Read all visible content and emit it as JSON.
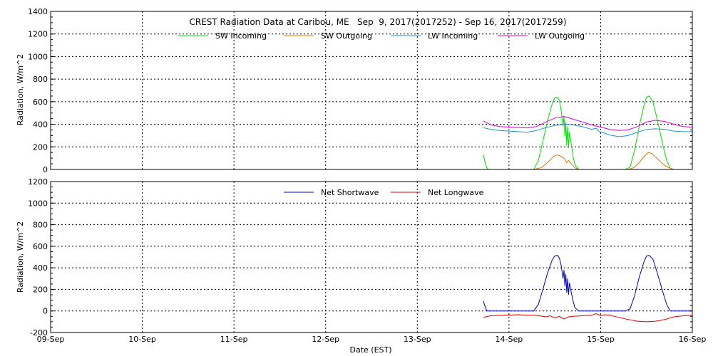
{
  "chart_data": [
    {
      "type": "line",
      "title": "CREST Radiation Data at Caribou, ME   Sep  9, 2017(2017252) - Sep 16, 2017(2017259)",
      "ylabel": "Radiation, W/m^2",
      "xlabel": "",
      "ylim": [
        0,
        1400
      ],
      "yticks": [
        0,
        200,
        400,
        600,
        800,
        1000,
        1200,
        1400
      ],
      "x_range": [
        9,
        16
      ],
      "legend_placement": "top",
      "grid": true,
      "series": [
        {
          "name": "SW Incoming",
          "color": "#00e000",
          "x": [
            13.72,
            13.74,
            13.76,
            13.78,
            14.27,
            14.32,
            14.37,
            14.42,
            14.47,
            14.5,
            14.53,
            14.55,
            14.57,
            14.59,
            14.6,
            14.61,
            14.62,
            14.63,
            14.64,
            14.65,
            14.66,
            14.68,
            14.7,
            14.72,
            14.76,
            14.78,
            15.27,
            15.32,
            15.37,
            15.42,
            15.47,
            15.5,
            15.53,
            15.57,
            15.6,
            15.64,
            15.68,
            15.72,
            15.76,
            15.8
          ],
          "y": [
            130,
            60,
            10,
            0,
            0,
            80,
            250,
            430,
            580,
            635,
            640,
            610,
            520,
            380,
            470,
            290,
            420,
            210,
            380,
            190,
            330,
            220,
            110,
            40,
            0,
            0,
            0,
            20,
            170,
            380,
            560,
            640,
            650,
            600,
            500,
            360,
            210,
            80,
            10,
            0
          ]
        },
        {
          "name": "SW Outgoing",
          "color": "#e07800",
          "x": [
            14.27,
            14.35,
            14.42,
            14.48,
            14.52,
            14.56,
            14.6,
            14.63,
            14.65,
            14.68,
            14.72,
            14.76,
            15.3,
            15.36,
            15.42,
            15.48,
            15.52,
            15.56,
            15.6,
            15.65,
            15.7,
            15.76,
            15.8
          ],
          "y": [
            0,
            15,
            60,
            110,
            130,
            120,
            100,
            60,
            80,
            50,
            15,
            0,
            0,
            15,
            60,
            120,
            150,
            140,
            110,
            70,
            35,
            10,
            0
          ]
        },
        {
          "name": "LW Incoming",
          "color": "#1e90d0",
          "x": [
            13.72,
            13.8,
            13.9,
            14.0,
            14.1,
            14.2,
            14.3,
            14.4,
            14.5,
            14.6,
            14.7,
            14.8,
            14.9,
            14.95,
            14.98,
            15.0,
            15.05,
            15.1,
            15.2,
            15.3,
            15.4,
            15.5,
            15.6,
            15.7,
            15.8,
            15.9,
            16.0
          ],
          "y": [
            370,
            355,
            345,
            340,
            335,
            330,
            345,
            370,
            390,
            400,
            395,
            380,
            355,
            365,
            340,
            330,
            320,
            305,
            290,
            300,
            330,
            355,
            360,
            355,
            340,
            335,
            335
          ]
        },
        {
          "name": "LW Outgoing",
          "color": "#e000e0",
          "x": [
            13.72,
            13.8,
            13.9,
            14.0,
            14.1,
            14.2,
            14.3,
            14.4,
            14.5,
            14.6,
            14.7,
            14.8,
            14.9,
            15.0,
            15.1,
            15.2,
            15.3,
            15.4,
            15.5,
            15.6,
            15.7,
            15.8,
            15.9,
            16.0
          ],
          "y": [
            430,
            395,
            380,
            375,
            370,
            368,
            380,
            420,
            455,
            470,
            445,
            420,
            395,
            375,
            355,
            345,
            350,
            380,
            420,
            435,
            425,
            400,
            380,
            375
          ]
        }
      ]
    },
    {
      "type": "line",
      "title": "",
      "ylabel": "Radiation, W/m^2",
      "xlabel": "Date (EST)",
      "ylim": [
        -200,
        1200
      ],
      "yticks": [
        -200,
        0,
        200,
        400,
        600,
        800,
        1000,
        1200
      ],
      "x_range": [
        9,
        16
      ],
      "xtick_values": [
        9,
        10,
        11,
        12,
        13,
        14,
        15,
        16
      ],
      "xtick_labels": [
        "09-Sep",
        "10-Sep",
        "11-Sep",
        "12-Sep",
        "13-Sep",
        "14-Sep",
        "15-Sep",
        "16-Sep"
      ],
      "legend_placement": "top",
      "grid": true,
      "series": [
        {
          "name": "Net Shortwave",
          "color": "#0000c0",
          "x": [
            13.72,
            13.74,
            13.76,
            14.27,
            14.32,
            14.37,
            14.42,
            14.47,
            14.5,
            14.53,
            14.55,
            14.57,
            14.59,
            14.6,
            14.61,
            14.62,
            14.63,
            14.64,
            14.65,
            14.66,
            14.68,
            14.7,
            14.72,
            14.76,
            15.27,
            15.32,
            15.37,
            15.42,
            15.47,
            15.5,
            15.53,
            15.57,
            15.6,
            15.64,
            15.68,
            15.72,
            15.76,
            16.0
          ],
          "y": [
            90,
            40,
            0,
            0,
            60,
            200,
            350,
            470,
            510,
            515,
            490,
            420,
            300,
            380,
            230,
            340,
            170,
            300,
            150,
            260,
            170,
            90,
            30,
            0,
            0,
            20,
            140,
            310,
            450,
            510,
            515,
            480,
            400,
            290,
            170,
            60,
            0,
            0
          ]
        },
        {
          "name": "Net Longwave",
          "color": "#e00000",
          "x": [
            13.72,
            13.8,
            13.9,
            14.0,
            14.1,
            14.2,
            14.3,
            14.4,
            14.45,
            14.5,
            14.55,
            14.6,
            14.65,
            14.7,
            14.8,
            14.9,
            14.95,
            15.0,
            15.05,
            15.1,
            15.2,
            15.3,
            15.4,
            15.5,
            15.6,
            15.7,
            15.8,
            15.9,
            16.0
          ],
          "y": [
            -60,
            -45,
            -40,
            -38,
            -35,
            -40,
            -40,
            -55,
            -45,
            -65,
            -50,
            -75,
            -55,
            -50,
            -45,
            -40,
            -25,
            -45,
            -35,
            -40,
            -60,
            -80,
            -95,
            -100,
            -95,
            -80,
            -55,
            -45,
            -40
          ]
        }
      ]
    }
  ]
}
